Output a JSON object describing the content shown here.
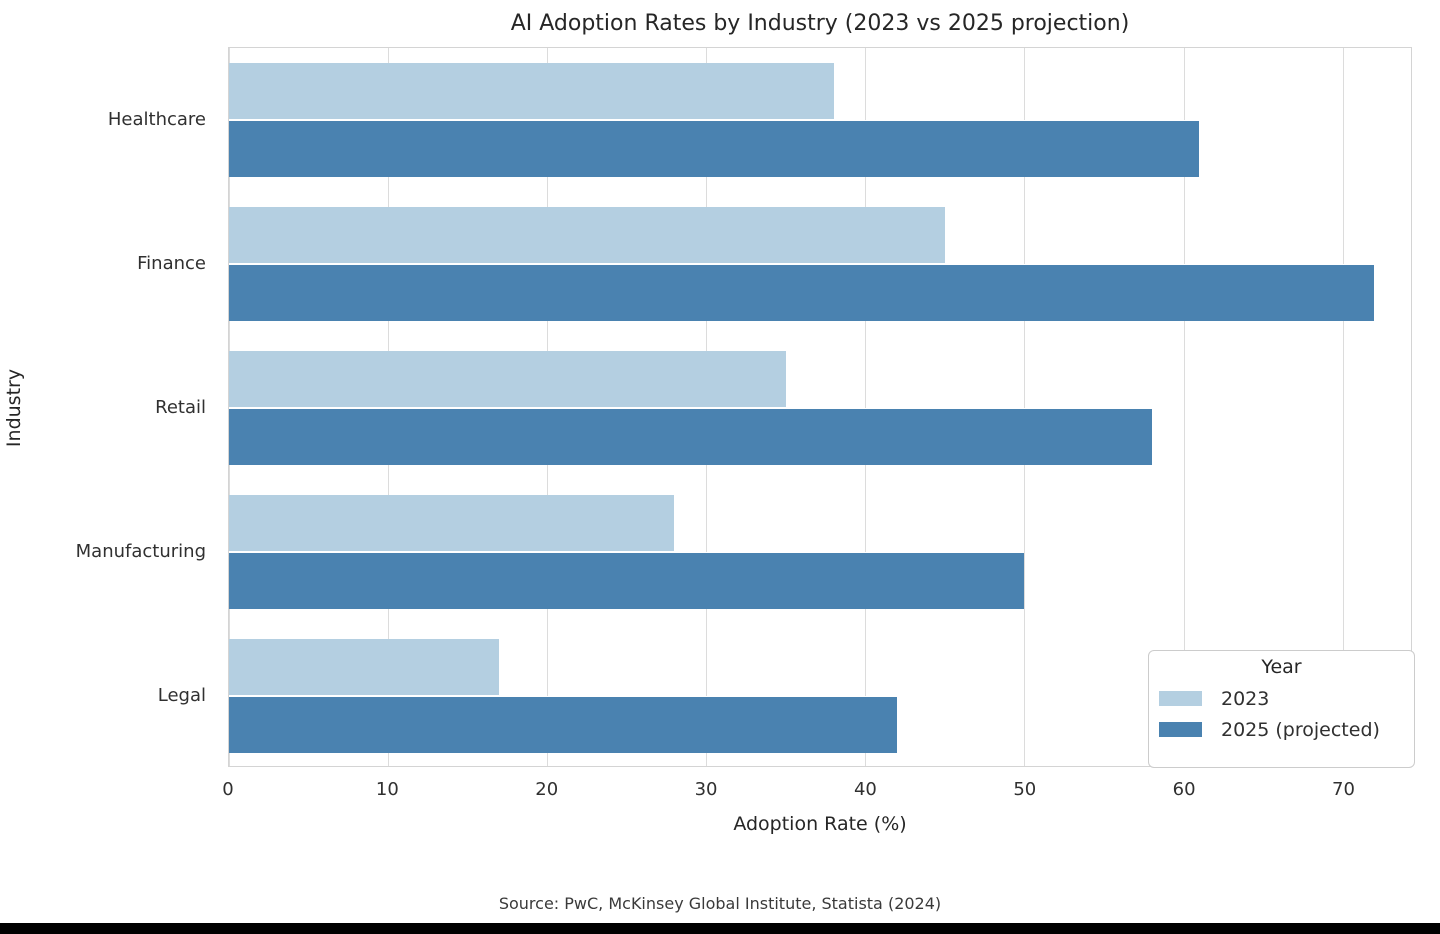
{
  "chart_data": {
    "type": "bar",
    "orientation": "horizontal",
    "title": "AI Adoption Rates by Industry (2023 vs 2025 projection)",
    "categories": [
      "Healthcare",
      "Finance",
      "Retail",
      "Manufacturing",
      "Legal"
    ],
    "series": [
      {
        "name": "2023",
        "color": "#B4CFE1",
        "values": [
          38,
          45,
          35,
          28,
          17
        ]
      },
      {
        "name": "2025 (projected)",
        "color": "#4A82B0",
        "values": [
          61,
          72,
          58,
          50,
          42
        ]
      }
    ],
    "xlabel": "Adoption Rate (%)",
    "ylabel": "Industry",
    "xlim": [
      0,
      74.3
    ],
    "xticks": [
      0,
      10,
      20,
      30,
      40,
      50,
      60,
      70
    ],
    "grid": true,
    "legend_title": "Year",
    "legend_position": "lower right"
  },
  "footer": {
    "source": "Source: PwC, McKinsey Global Institute, Statista (2024)"
  }
}
